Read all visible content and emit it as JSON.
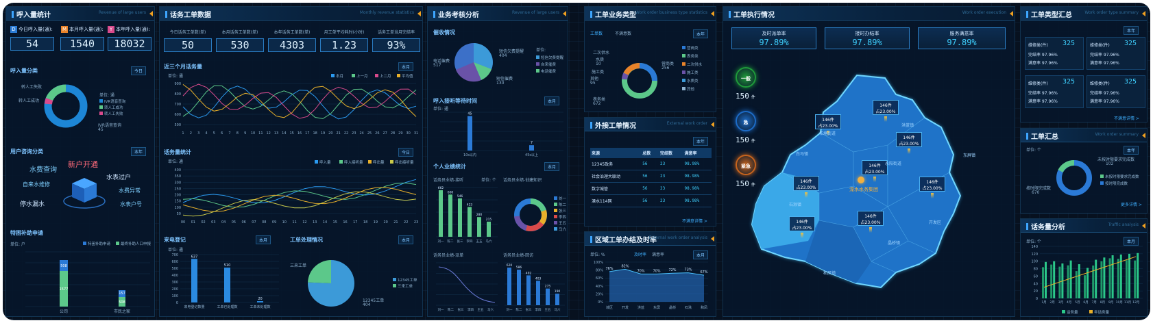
{
  "p1": {
    "title": "呼入量统计",
    "sub": "Revenue of large users",
    "kpis": [
      {
        "b": "D",
        "color": "#2b7cd6",
        "label": "今日呼入量(通):",
        "value": "54"
      },
      {
        "b": "M",
        "color": "#e8832a",
        "label": "本月呼入量(通):",
        "value": "1540"
      },
      {
        "b": "Y",
        "color": "#d84a8c",
        "label": "本年呼入量(通):",
        "value": "18032"
      }
    ],
    "call_type": {
      "title": "呼入量分类",
      "select": "今日",
      "labels": [
        "转人工失败",
        "转人工成功"
      ],
      "unit": "单位: 通",
      "legend": [
        "IVR语音查询",
        "转人工成功",
        "转人工失败"
      ],
      "big_label": "IVR语音查询",
      "big_value": "45"
    },
    "consult": {
      "title": "用户咨询分类",
      "select": "本年",
      "words": [
        "水费查询",
        "新户开通",
        "水表过户",
        "自来水维修",
        "水费异常",
        "停水漏水",
        "水表户号"
      ]
    },
    "subsidy": {
      "title": "特困补助申请",
      "unit": "单位: 户",
      "legend": [
        "特困补助申请",
        "最终补助人口申报"
      ],
      "categories": [
        "公司",
        "市民之家"
      ],
      "tv": [
        "508",
        "157"
      ],
      "bv": [
        "1577",
        "508"
      ]
    }
  },
  "p2": {
    "title": "话务工单数据",
    "sub": "Monthly revenue statistics",
    "kpis": [
      {
        "label": "今日话务工单数(单)",
        "value": "50"
      },
      {
        "label": "本月话务工单数(单)",
        "value": "530"
      },
      {
        "label": "本年话务工单数(单)",
        "value": "4303"
      },
      {
        "label": "月工单平均耗时(小时)",
        "value": "1.23"
      },
      {
        "label": "话务工单当月完结率",
        "value": "93%"
      }
    ],
    "trend": {
      "title": "近三个月话务量",
      "select": "本月",
      "unit": "单位: 通",
      "legend": [
        "本月",
        "上一月",
        "上二月",
        "平均值"
      ],
      "yticks": [
        "900",
        "800",
        "700",
        "600",
        "500"
      ],
      "xticks": [
        "1",
        "2",
        "3",
        "4",
        "5",
        "6",
        "7",
        "8",
        "9",
        "10",
        "11",
        "12",
        "13",
        "14",
        "15",
        "16",
        "17",
        "18",
        "19",
        "20",
        "21",
        "22",
        "23",
        "24",
        "25",
        "26",
        "27",
        "28",
        "29",
        "30",
        "31"
      ]
    },
    "hourly": {
      "title": "话务量统计",
      "select": "今日",
      "unit": "单位: 通",
      "legend": [
        "呼入量",
        "呼入接听量",
        "呼出量",
        "呼出接听量"
      ],
      "yticks": [
        "400",
        "350",
        "300",
        "250",
        "200",
        "150",
        "100",
        "50"
      ],
      "xticks": [
        "00",
        "01",
        "02",
        "03",
        "04",
        "05",
        "06",
        "07",
        "08",
        "09",
        "10",
        "11",
        "12",
        "13",
        "14",
        "15",
        "16",
        "17",
        "18",
        "19",
        "20",
        "21",
        "22",
        "23"
      ]
    },
    "incoming": {
      "title": "来电登记",
      "select": "本月",
      "unit": "单位: 通",
      "yticks": [
        "700",
        "600",
        "500",
        "400",
        "300",
        "200",
        "100",
        "0"
      ],
      "categories": [
        "来电登记数量",
        "工单已处理数",
        "工单未处理数"
      ],
      "values": [
        637,
        510,
        20
      ]
    },
    "handling": {
      "title": "工单处理情况",
      "select": "本月",
      "slices": [
        {
          "name": "12345工单",
          "value": 404,
          "color": "#3c9ad8"
        },
        {
          "name": "三来工单",
          "value": 130,
          "color": "#5cc88a"
        }
      ],
      "l1": "三来工单",
      "l2": "12345工单",
      "v2": "404"
    }
  },
  "p3": {
    "title": "业务考核分析",
    "sub": "Revenue of large users",
    "coll": {
      "title": "催收情况",
      "unit": "单位:",
      "a": "短信欠费提醒",
      "av": "404",
      "b": "电话催费",
      "bv": "517",
      "c": "短信催费",
      "cv": "130",
      "legend": [
        "短信欠费提醒",
        "自来催费",
        "电话催费"
      ]
    },
    "wait": {
      "title": "呼入接听等待时间",
      "select": "本月",
      "unit": "单位: 通",
      "categories": [
        "10s以内",
        "45s以上"
      ],
      "values": [
        45,
        7
      ]
    },
    "pers": {
      "title": "个人业绩统计",
      "select": "本月",
      "a": "话务员业绩-接听",
      "b": "话务员业绩-创建知识",
      "unit": "单位: 个",
      "categories": [
        "刘一",
        "陈二",
        "张三",
        "李四",
        "王五",
        "马六"
      ],
      "values": [
        662,
        600,
        546,
        423,
        280,
        215
      ],
      "donut_legend": [
        "刘一",
        "陈二",
        "张三",
        "李四",
        "王五",
        "马六"
      ]
    },
    "reply": {
      "a": "话务员业绩-派单",
      "b": "话务员业绩-回访",
      "categories": [
        "刘一",
        "陈二",
        "张三",
        "李四",
        "王五",
        "马六"
      ],
      "values": [
        620,
        586,
        492,
        403,
        275,
        190
      ]
    }
  },
  "p4": {
    "biz": {
      "title": "工单业务类型",
      "sub": "Work order business type statistics",
      "tabs": [
        "工单数",
        "不满意数"
      ],
      "select": "本年",
      "labels": [
        "二次供水",
        "水质",
        "施工类",
        "其他",
        "表务类",
        "营商类"
      ],
      "values": [
        "",
        "10",
        "",
        "95",
        "672",
        "256"
      ],
      "legend": [
        "营商类",
        "表务类",
        "二次供水",
        "施工类",
        "水质类",
        "其他"
      ]
    },
    "ext": {
      "title": "外接工单情况",
      "sub": "External work order",
      "select": "本年",
      "headers": [
        "来源",
        "总数",
        "完结数",
        "满意率"
      ],
      "rows": [
        [
          "12345政务",
          "56",
          "23",
          "98.98%"
        ],
        [
          "社会治理大联动",
          "56",
          "23",
          "98.98%"
        ],
        [
          "数字城管",
          "56",
          "23",
          "98.98%"
        ],
        [
          "溧水114网",
          "56",
          "23",
          "98.98%"
        ]
      ],
      "more": "不满意详情 >"
    },
    "region": {
      "title": "区域工单办结及时率",
      "sub": "External work order analysis",
      "tabs": [
        "及时率",
        "满意率"
      ],
      "select": "本月",
      "unit": "单位: %",
      "yticks": [
        "100%",
        "80%",
        "60%",
        "40%",
        "20%",
        "0%"
      ],
      "values": [
        "76%",
        "82%",
        "70%",
        "70%",
        "72%",
        "73%",
        "67%"
      ],
      "xticks": [
        "城区",
        "开发",
        "洪蓝",
        "东屏",
        "晶桥",
        "石湫",
        "和凤"
      ]
    }
  },
  "p5": {
    "title": "工单执行情况",
    "sub": "Work order execution",
    "stats": [
      {
        "a": "及时派单率",
        "b": "97.89%"
      },
      {
        "a": "接时办结率",
        "b": "97.89%"
      },
      {
        "a": "服务满意率",
        "b": "97.89%"
      }
    ],
    "levels": [
      {
        "name": "一般",
        "value": "150",
        "unit": "件",
        "color": "#1f9c3a"
      },
      {
        "name": "急",
        "value": "150",
        "unit": "件",
        "color": "#1d6cc8"
      },
      {
        "name": "紧急",
        "value": "150",
        "unit": "件",
        "color": "#c8641d"
      }
    ],
    "tags": [
      {
        "a": "146件",
        "b": "占23.00%"
      },
      {
        "a": "146件",
        "b": "占23.00%"
      },
      {
        "a": "146件",
        "b": "占23.00%"
      },
      {
        "a": "146件",
        "b": "占23.00%"
      },
      {
        "a": "146件",
        "b": "占23.00%"
      },
      {
        "a": "146件",
        "b": "占23.00%"
      },
      {
        "a": "146件",
        "b": "占23.00%"
      },
      {
        "a": "146件",
        "b": "占23.00%"
      },
      {
        "a": "146件",
        "b": "占23.00%"
      }
    ],
    "center": "溧水水务集团",
    "places": [
      "东屏镇",
      "和凤镇",
      "晶桥镇",
      "洪蓝镇",
      "白马镇",
      "石湫镇",
      "永阳街道",
      "柘塘街道",
      "开发区"
    ]
  },
  "p6": {
    "sum": {
      "title": "工单类型汇总",
      "sub": "Work order type summary",
      "select": "本年",
      "cells": [
        {
          "a": "维修类(件)",
          "v": "325",
          "b": "完结率 97.96%",
          "c": "满意率 97.96%"
        },
        {
          "a": "维修类(件)",
          "v": "325",
          "b": "完结率 97.96%",
          "c": "满意率 97.96%"
        },
        {
          "a": "维修类(件)",
          "v": "325",
          "b": "完结率 97.96%",
          "c": "满意率 97.96%"
        },
        {
          "a": "维修类(件)",
          "v": "325",
          "b": "完结率 97.96%",
          "c": "满意率 97.96%"
        }
      ],
      "more": "不满意详情 >"
    },
    "wo": {
      "title": "工单汇总",
      "sub": "Work order summary",
      "unit": "单位: 个",
      "select": "本年",
      "a": "未按时限要求完成数",
      "av": "102",
      "b": "按时限完成数",
      "bv": "670",
      "legend": [
        "未按时限要求完成数",
        "按时限完成数"
      ],
      "more": "更多详情 >"
    },
    "traffic": {
      "title": "话务量分析",
      "sub": "Traffic analysis",
      "select": "本月",
      "unit": "单位: 个",
      "yticks": [
        "140",
        "120",
        "100",
        "80",
        "60",
        "40",
        "20",
        "0"
      ],
      "xticks": [
        "1月",
        "2月",
        "3月",
        "4月",
        "5月",
        "6月",
        "7月",
        "8月",
        "9月",
        "10月",
        "11月",
        "12月"
      ],
      "values": [
        98,
        100,
        94,
        102,
        92,
        82,
        104,
        110,
        116,
        118,
        120,
        122
      ],
      "legend": [
        "话务量",
        "年话务量"
      ]
    }
  }
}
